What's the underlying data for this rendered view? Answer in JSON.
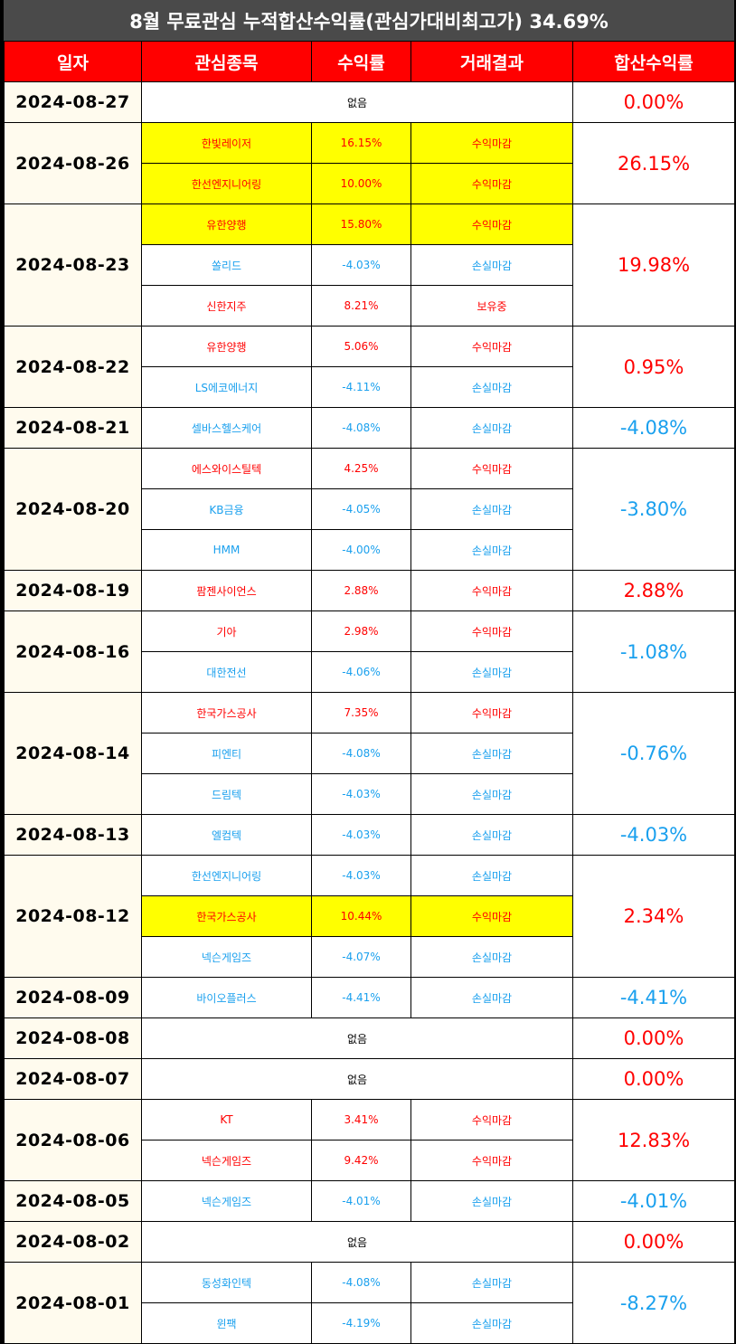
{
  "title": "8월 무료관심 누적합산수익률(관심가대비최고가) 34.69%",
  "headers": [
    "일자",
    "관심종목",
    "수익률",
    "거래결과",
    "합산수익률"
  ],
  "none_label": "없음",
  "colors": {
    "header_bg": "#ff0000",
    "title_bg": "#4a4a4a",
    "date_bg": "#fffbee",
    "highlight": "#ffff00",
    "profit": "#ff0000",
    "loss": "#1aa0ee"
  },
  "days": [
    {
      "date": "2024-08-27",
      "total": "0.00%",
      "total_color": "red",
      "trades": []
    },
    {
      "date": "2024-08-26",
      "total": "26.15%",
      "total_color": "red",
      "trades": [
        {
          "name": "한빛레이저",
          "rate": "16.15%",
          "result": "수익마감",
          "color": "red",
          "highlight": true
        },
        {
          "name": "한선엔지니어링",
          "rate": "10.00%",
          "result": "수익마감",
          "color": "red",
          "highlight": true
        }
      ]
    },
    {
      "date": "2024-08-23",
      "total": "19.98%",
      "total_color": "red",
      "trades": [
        {
          "name": "유한양행",
          "rate": "15.80%",
          "result": "수익마감",
          "color": "red",
          "highlight": true
        },
        {
          "name": "쏠리드",
          "rate": "-4.03%",
          "result": "손실마감",
          "color": "blue",
          "highlight": false
        },
        {
          "name": "신한지주",
          "rate": "8.21%",
          "result": "보유중",
          "color": "red",
          "highlight": false
        }
      ]
    },
    {
      "date": "2024-08-22",
      "total": "0.95%",
      "total_color": "red",
      "trades": [
        {
          "name": "유한양행",
          "rate": "5.06%",
          "result": "수익마감",
          "color": "red",
          "highlight": false
        },
        {
          "name": "LS에코에너지",
          "rate": "-4.11%",
          "result": "손실마감",
          "color": "blue",
          "highlight": false
        }
      ]
    },
    {
      "date": "2024-08-21",
      "total": "-4.08%",
      "total_color": "blue",
      "trades": [
        {
          "name": "셀바스헬스케어",
          "rate": "-4.08%",
          "result": "손실마감",
          "color": "blue",
          "highlight": false
        }
      ]
    },
    {
      "date": "2024-08-20",
      "total": "-3.80%",
      "total_color": "blue",
      "trades": [
        {
          "name": "에스와이스틸텍",
          "rate": "4.25%",
          "result": "수익마감",
          "color": "red",
          "highlight": false
        },
        {
          "name": "KB금융",
          "rate": "-4.05%",
          "result": "손실마감",
          "color": "blue",
          "highlight": false
        },
        {
          "name": "HMM",
          "rate": "-4.00%",
          "result": "손실마감",
          "color": "blue",
          "highlight": false
        }
      ]
    },
    {
      "date": "2024-08-19",
      "total": "2.88%",
      "total_color": "red",
      "trades": [
        {
          "name": "팜젠사이언스",
          "rate": "2.88%",
          "result": "수익마감",
          "color": "red",
          "highlight": false
        }
      ]
    },
    {
      "date": "2024-08-16",
      "total": "-1.08%",
      "total_color": "blue",
      "trades": [
        {
          "name": "기아",
          "rate": "2.98%",
          "result": "수익마감",
          "color": "red",
          "highlight": false
        },
        {
          "name": "대한전선",
          "rate": "-4.06%",
          "result": "손실마감",
          "color": "blue",
          "highlight": false
        }
      ]
    },
    {
      "date": "2024-08-14",
      "total": "-0.76%",
      "total_color": "blue",
      "trades": [
        {
          "name": "한국가스공사",
          "rate": "7.35%",
          "result": "수익마감",
          "color": "red",
          "highlight": false
        },
        {
          "name": "피엔티",
          "rate": "-4.08%",
          "result": "손실마감",
          "color": "blue",
          "highlight": false
        },
        {
          "name": "드림텍",
          "rate": "-4.03%",
          "result": "손실마감",
          "color": "blue",
          "highlight": false
        }
      ]
    },
    {
      "date": "2024-08-13",
      "total": "-4.03%",
      "total_color": "blue",
      "trades": [
        {
          "name": "엘컴텍",
          "rate": "-4.03%",
          "result": "손실마감",
          "color": "blue",
          "highlight": false
        }
      ]
    },
    {
      "date": "2024-08-12",
      "total": "2.34%",
      "total_color": "red",
      "trades": [
        {
          "name": "한선엔지니어링",
          "rate": "-4.03%",
          "result": "손실마감",
          "color": "blue",
          "highlight": false
        },
        {
          "name": "한국가스공사",
          "rate": "10.44%",
          "result": "수익마감",
          "color": "red",
          "highlight": true
        },
        {
          "name": "넥슨게임즈",
          "rate": "-4.07%",
          "result": "손실마감",
          "color": "blue",
          "highlight": false
        }
      ]
    },
    {
      "date": "2024-08-09",
      "total": "-4.41%",
      "total_color": "blue",
      "trades": [
        {
          "name": "바이오플러스",
          "rate": "-4.41%",
          "result": "손실마감",
          "color": "blue",
          "highlight": false
        }
      ]
    },
    {
      "date": "2024-08-08",
      "total": "0.00%",
      "total_color": "red",
      "trades": []
    },
    {
      "date": "2024-08-07",
      "total": "0.00%",
      "total_color": "red",
      "trades": []
    },
    {
      "date": "2024-08-06",
      "total": "12.83%",
      "total_color": "red",
      "trades": [
        {
          "name": "KT",
          "rate": "3.41%",
          "result": "수익마감",
          "color": "red",
          "highlight": false
        },
        {
          "name": "넥슨게임즈",
          "rate": "9.42%",
          "result": "수익마감",
          "color": "red",
          "highlight": false
        }
      ]
    },
    {
      "date": "2024-08-05",
      "total": "-4.01%",
      "total_color": "blue",
      "trades": [
        {
          "name": "넥슨게임즈",
          "rate": "-4.01%",
          "result": "손실마감",
          "color": "blue",
          "highlight": false
        }
      ]
    },
    {
      "date": "2024-08-02",
      "total": "0.00%",
      "total_color": "red",
      "trades": []
    },
    {
      "date": "2024-08-01",
      "total": "-8.27%",
      "total_color": "blue",
      "trades": [
        {
          "name": "동성화인텍",
          "rate": "-4.08%",
          "result": "손실마감",
          "color": "blue",
          "highlight": false
        },
        {
          "name": "윈팩",
          "rate": "-4.19%",
          "result": "손실마감",
          "color": "blue",
          "highlight": false
        }
      ]
    }
  ]
}
